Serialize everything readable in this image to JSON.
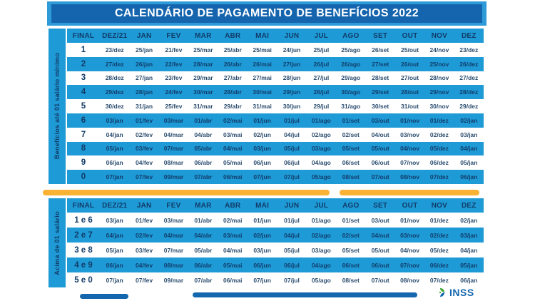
{
  "title": "CALENDÁRIO DE PAGAMENTO DE BENEFÍCIOS 2022",
  "colors": {
    "brand_blue": "#1E9AD6",
    "dark_blue": "#1565AE",
    "light_blue": "#2E9BD8",
    "navy_text": "#113C68",
    "yellow": "#F9B233",
    "footer_blue": "#1467AE",
    "logo_green": "#3FA535",
    "logo_yellow": "#F9B233",
    "logo_blue": "#1467AE"
  },
  "tables": [
    {
      "side_label": "Benefícios até 01 salário mínimo",
      "columns": [
        "FINAL",
        "DEZ/21",
        "JAN",
        "FEV",
        "MAR",
        "ABR",
        "MAI",
        "JUN",
        "JUL",
        "AGO",
        "SET",
        "OUT",
        "NOV",
        "DEZ"
      ],
      "rows": [
        {
          "final": "1",
          "dates": [
            "23/dez",
            "25/jan",
            "21/fev",
            "25/mar",
            "25/abr",
            "25/mai",
            "24/jun",
            "25/jul",
            "25/ago",
            "26/set",
            "25/out",
            "24/nov",
            "23/dez"
          ]
        },
        {
          "final": "2",
          "dates": [
            "27/dez",
            "26/jan",
            "22/fev",
            "28/mar",
            "26/abr",
            "26/mai",
            "27/jun",
            "26/jul",
            "26/ago",
            "27/set",
            "26/out",
            "25/nov",
            "26/dez"
          ]
        },
        {
          "final": "3",
          "dates": [
            "28/dez",
            "27/jan",
            "23/fev",
            "29/mar",
            "27/abr",
            "27/mai",
            "28/jun",
            "27/jul",
            "29/ago",
            "28/set",
            "27/out",
            "28/nov",
            "27/dez"
          ]
        },
        {
          "final": "4",
          "dates": [
            "29/dez",
            "28/jan",
            "24/fev",
            "30/mar",
            "28/abr",
            "30/mai",
            "29/jun",
            "28/jul",
            "30/ago",
            "29/set",
            "28/out",
            "29/nov",
            "28/dez"
          ]
        },
        {
          "final": "5",
          "dates": [
            "30/dez",
            "31/jan",
            "25/fev",
            "31/mar",
            "29/abr",
            "31/mai",
            "30/jun",
            "29/jul",
            "31/ago",
            "30/set",
            "31/out",
            "30/nov",
            "29/dez"
          ]
        },
        {
          "final": "6",
          "dates": [
            "03/jan",
            "01/fev",
            "03/mar",
            "01/abr",
            "02/mai",
            "01/jun",
            "01/jul",
            "01/ago",
            "01/set",
            "03/out",
            "01/nov",
            "01/dez",
            "02/jan"
          ]
        },
        {
          "final": "7",
          "dates": [
            "04/jan",
            "02/fev",
            "04/mar",
            "04/abr",
            "03/mai",
            "02/jun",
            "04/jul",
            "02/ago",
            "02/set",
            "04/out",
            "03/nov",
            "02/dez",
            "03/jan"
          ]
        },
        {
          "final": "8",
          "dates": [
            "05/jan",
            "03/fev",
            "07/mar",
            "05/abr",
            "04/mai",
            "03/jun",
            "05/jul",
            "03/ago",
            "05/set",
            "05/out",
            "04/nov",
            "05/dez",
            "04/jan"
          ]
        },
        {
          "final": "9",
          "dates": [
            "06/jan",
            "04/fev",
            "08/mar",
            "06/abr",
            "05/mai",
            "06/jun",
            "06/jul",
            "04/ago",
            "06/set",
            "06/out",
            "07/nov",
            "06/dez",
            "05/jan"
          ]
        },
        {
          "final": "0",
          "dates": [
            "07/jan",
            "07/fev",
            "09/mar",
            "07/abr",
            "06/mai",
            "07/jun",
            "07/jul",
            "05/ago",
            "08/set",
            "07/out",
            "08/nov",
            "07/dez",
            "06/jan"
          ]
        }
      ]
    },
    {
      "side_label": "Acima de 01 salário",
      "columns": [
        "FINAL",
        "DEZ/21",
        "JAN",
        "FEV",
        "MAR",
        "ABR",
        "MAI",
        "JUN",
        "JUL",
        "AGO",
        "SET",
        "OUT",
        "NOV",
        "DEZ"
      ],
      "rows": [
        {
          "final": "1 e 6",
          "dates": [
            "03/jan",
            "01/fev",
            "03/mar",
            "01/abr",
            "02/mai",
            "01/jun",
            "01/jul",
            "01/ago",
            "01/set",
            "03/out",
            "01/nov",
            "01/dez",
            "02/jan"
          ]
        },
        {
          "final": "2 e 7",
          "dates": [
            "04/jan",
            "02/fev",
            "04/mar",
            "04/abr",
            "03/mai",
            "02/jun",
            "04/jul",
            "02/ago",
            "02/set",
            "04/out",
            "03/nov",
            "02/dez",
            "03/jan"
          ]
        },
        {
          "final": "3 e 8",
          "dates": [
            "05/jan",
            "03/fev",
            "07/mar",
            "05/abr",
            "04/mai",
            "03/jun",
            "05/jul",
            "03/ago",
            "05/set",
            "05/out",
            "04/nov",
            "05/dez",
            "04/jan"
          ]
        },
        {
          "final": "4 e 9",
          "dates": [
            "06/jan",
            "04/fev",
            "08/mar",
            "06/abr",
            "05/mai",
            "06/jun",
            "06/jul",
            "04/ago",
            "06/set",
            "06/out",
            "07/nov",
            "06/dez",
            "05/jan"
          ]
        },
        {
          "final": "5 e 0",
          "dates": [
            "07/jan",
            "07/fev",
            "09/mar",
            "07/abr",
            "06/mai",
            "07/jun",
            "07/jul",
            "05/ago",
            "08/set",
            "07/out",
            "08/nov",
            "07/dez",
            "06/jan"
          ]
        }
      ]
    }
  ],
  "footer": {
    "logo_text": "INSS"
  }
}
